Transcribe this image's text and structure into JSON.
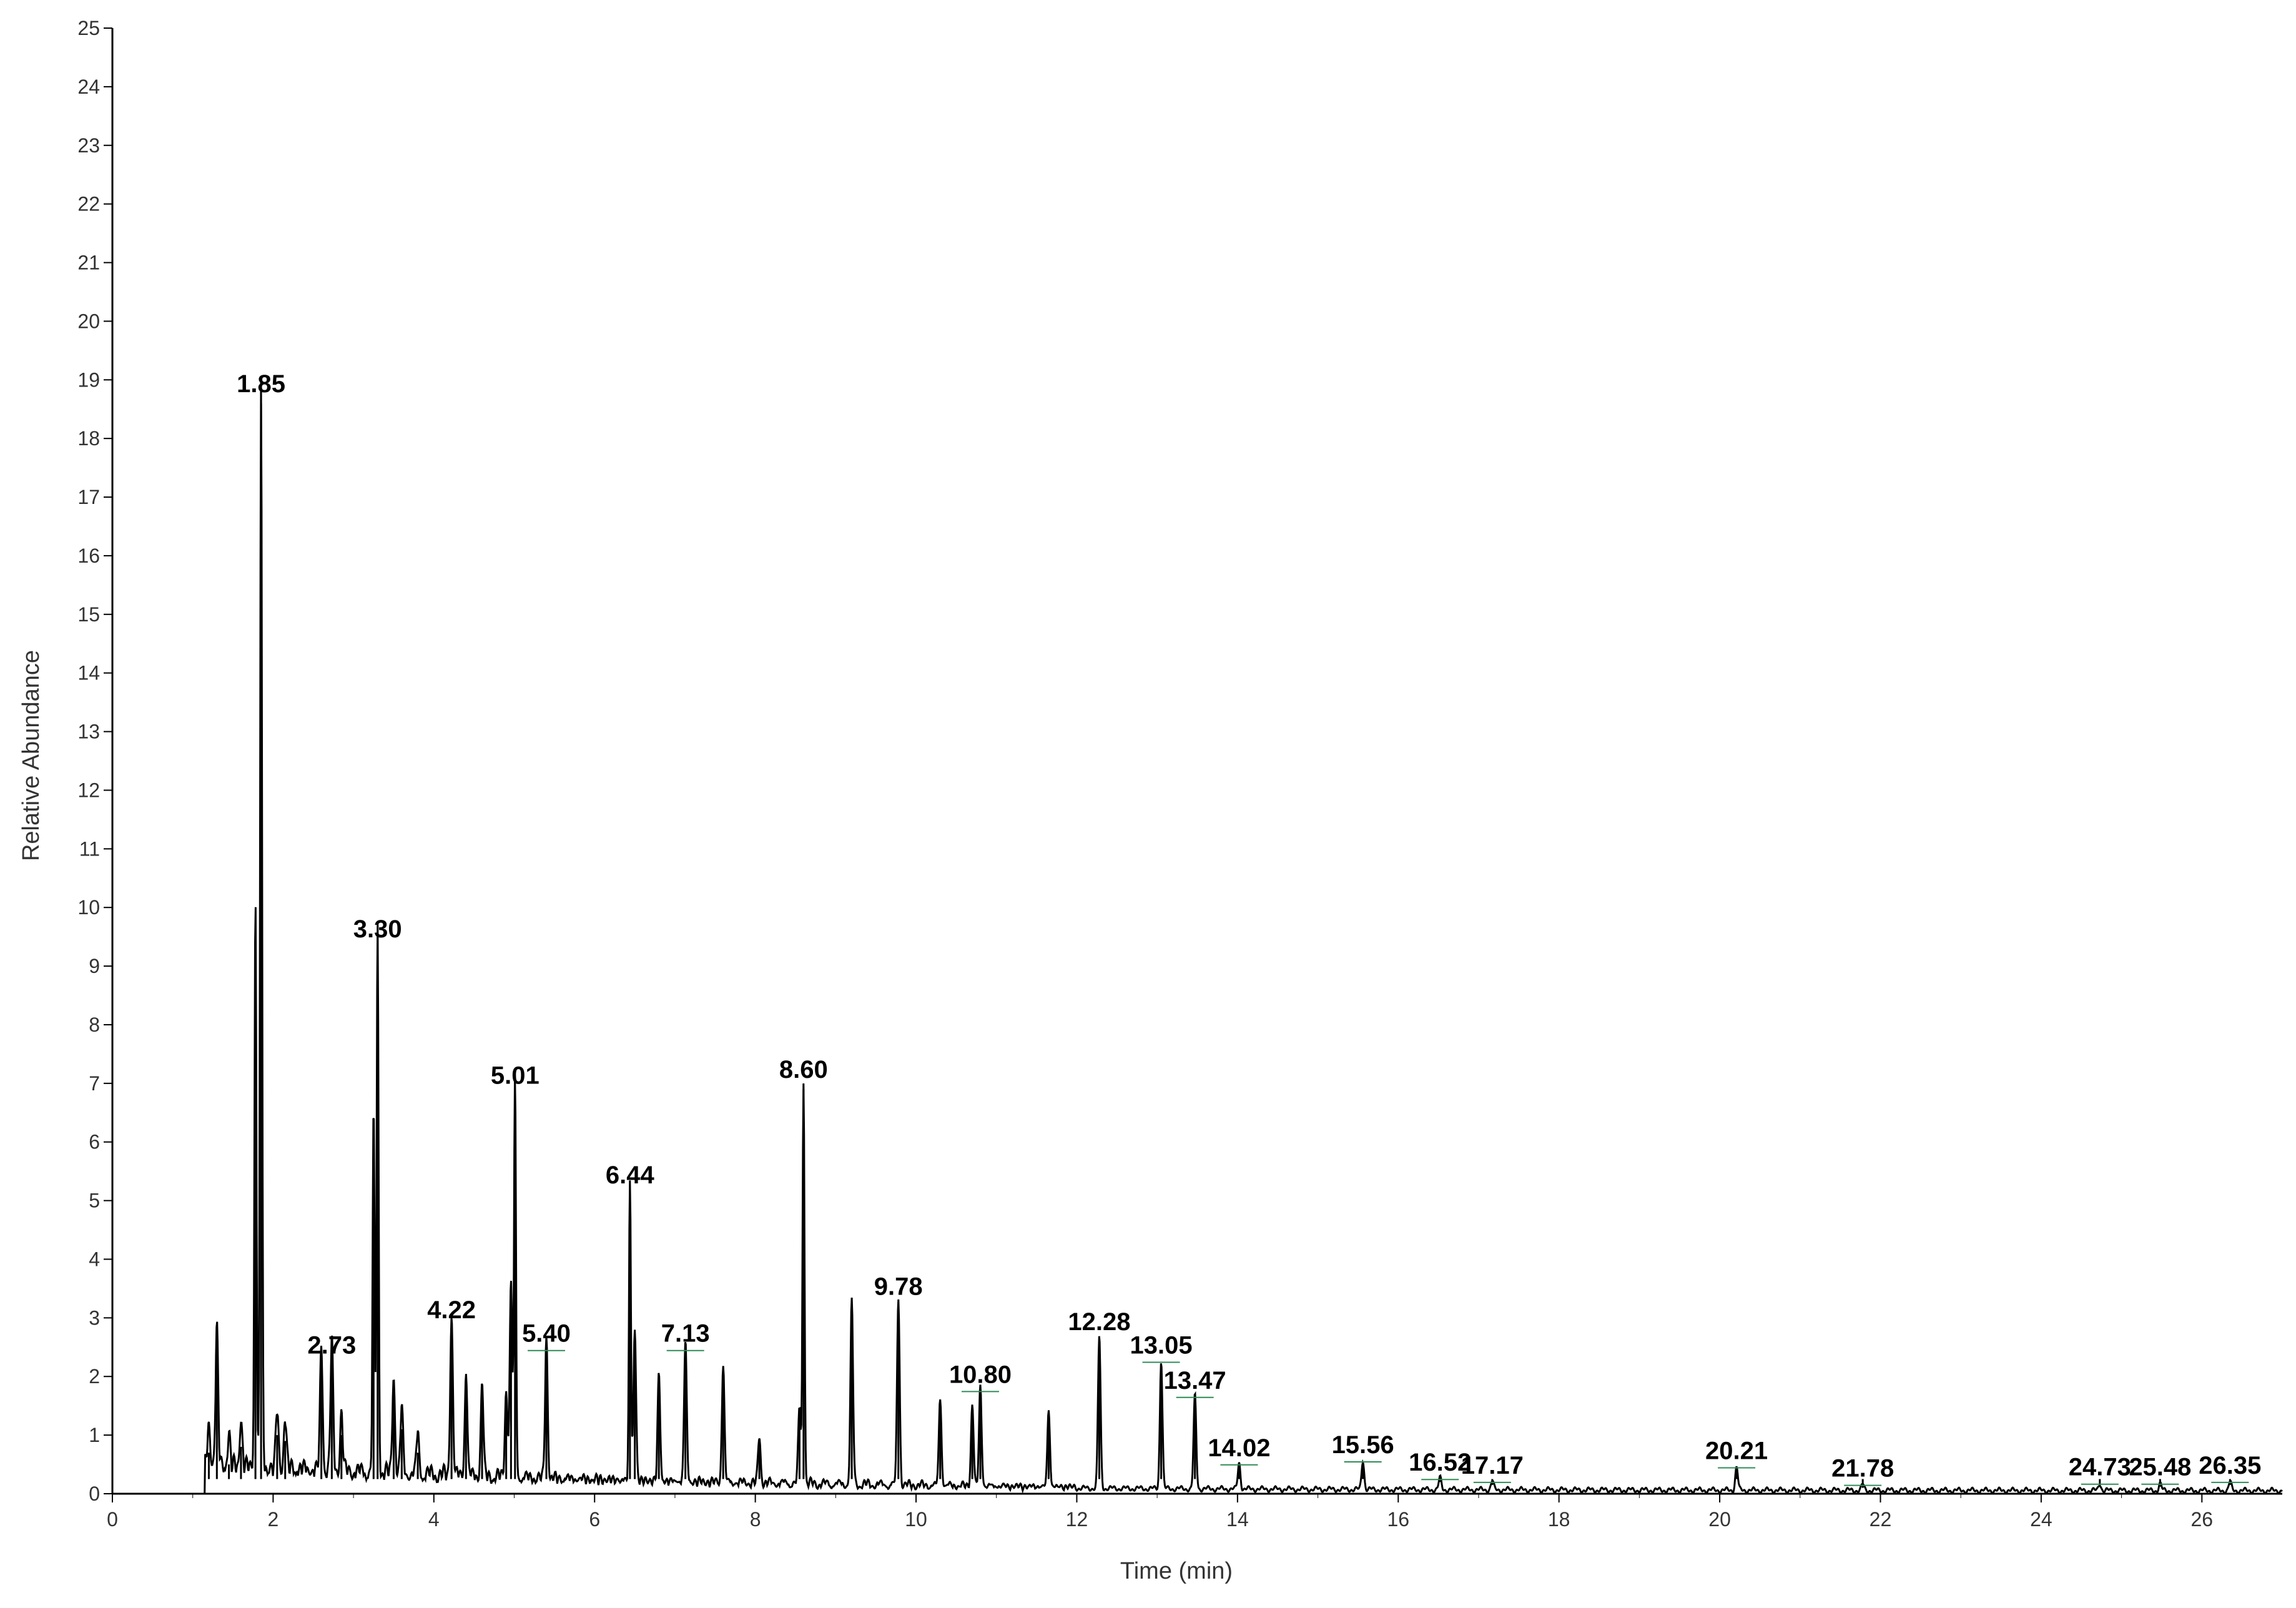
{
  "chart_data": {
    "type": "line",
    "title": "",
    "xlabel": "Time (min)",
    "ylabel": "Relative Abundance",
    "xlim": [
      0,
      27
    ],
    "ylim": [
      0,
      25
    ],
    "x_ticks": [
      0,
      2,
      4,
      6,
      8,
      10,
      12,
      14,
      16,
      18,
      20,
      22,
      24,
      26
    ],
    "y_ticks": [
      0,
      1,
      2,
      3,
      4,
      5,
      6,
      7,
      8,
      9,
      10,
      11,
      12,
      13,
      14,
      15,
      16,
      17,
      18,
      19,
      20,
      21,
      22,
      23,
      24,
      25
    ],
    "grid": false,
    "legend": "none",
    "line_color": "#000000",
    "annotation_color": "#2e8b57",
    "peaks": [
      {
        "x": 1.2,
        "y": 0.7
      },
      {
        "x": 1.3,
        "y": 2.3
      },
      {
        "x": 1.45,
        "y": 0.5
      },
      {
        "x": 1.6,
        "y": 0.8
      },
      {
        "x": 1.78,
        "y": 9.7
      },
      {
        "x": 1.85,
        "y": 18.6,
        "label": "1.85"
      },
      {
        "x": 2.05,
        "y": 1.0
      },
      {
        "x": 2.15,
        "y": 0.9
      },
      {
        "x": 2.6,
        "y": 2.1
      },
      {
        "x": 2.73,
        "y": 2.2,
        "label": "2.73"
      },
      {
        "x": 2.85,
        "y": 1.0
      },
      {
        "x": 3.25,
        "y": 6.1
      },
      {
        "x": 3.3,
        "y": 9.3,
        "label": "3.30"
      },
      {
        "x": 3.5,
        "y": 1.7
      },
      {
        "x": 3.6,
        "y": 1.1
      },
      {
        "x": 3.8,
        "y": 0.7
      },
      {
        "x": 4.22,
        "y": 2.8,
        "label": "4.22"
      },
      {
        "x": 4.4,
        "y": 1.8
      },
      {
        "x": 4.6,
        "y": 1.6
      },
      {
        "x": 4.9,
        "y": 1.5
      },
      {
        "x": 4.96,
        "y": 3.3
      },
      {
        "x": 5.01,
        "y": 6.8,
        "label": "5.01"
      },
      {
        "x": 5.4,
        "y": 2.4,
        "label": "5.40"
      },
      {
        "x": 6.44,
        "y": 5.1,
        "label": "6.44"
      },
      {
        "x": 6.5,
        "y": 2.6
      },
      {
        "x": 6.8,
        "y": 1.8
      },
      {
        "x": 7.13,
        "y": 2.4,
        "label": "7.13"
      },
      {
        "x": 7.6,
        "y": 2.0
      },
      {
        "x": 8.05,
        "y": 0.8
      },
      {
        "x": 8.55,
        "y": 1.3
      },
      {
        "x": 8.6,
        "y": 6.9,
        "label": "8.60"
      },
      {
        "x": 9.2,
        "y": 3.1
      },
      {
        "x": 9.78,
        "y": 3.2,
        "label": "9.78"
      },
      {
        "x": 10.3,
        "y": 1.5
      },
      {
        "x": 10.7,
        "y": 1.4
      },
      {
        "x": 10.8,
        "y": 1.7,
        "label": "10.80"
      },
      {
        "x": 11.65,
        "y": 1.3
      },
      {
        "x": 12.28,
        "y": 2.6,
        "label": "12.28"
      },
      {
        "x": 13.05,
        "y": 2.2,
        "label": "13.05"
      },
      {
        "x": 13.47,
        "y": 1.6,
        "label": "13.47"
      },
      {
        "x": 14.02,
        "y": 0.45,
        "label": "14.02"
      },
      {
        "x": 15.56,
        "y": 0.5,
        "label": "15.56"
      },
      {
        "x": 16.52,
        "y": 0.2,
        "label": "16.52"
      },
      {
        "x": 17.17,
        "y": 0.15,
        "label": "17.17"
      },
      {
        "x": 20.21,
        "y": 0.4,
        "label": "20.21"
      },
      {
        "x": 21.78,
        "y": 0.1,
        "label": "21.78"
      },
      {
        "x": 24.73,
        "y": 0.12,
        "label": "24.73"
      },
      {
        "x": 25.48,
        "y": 0.12,
        "label": "25.48"
      },
      {
        "x": 26.35,
        "y": 0.15,
        "label": "26.35"
      }
    ]
  }
}
